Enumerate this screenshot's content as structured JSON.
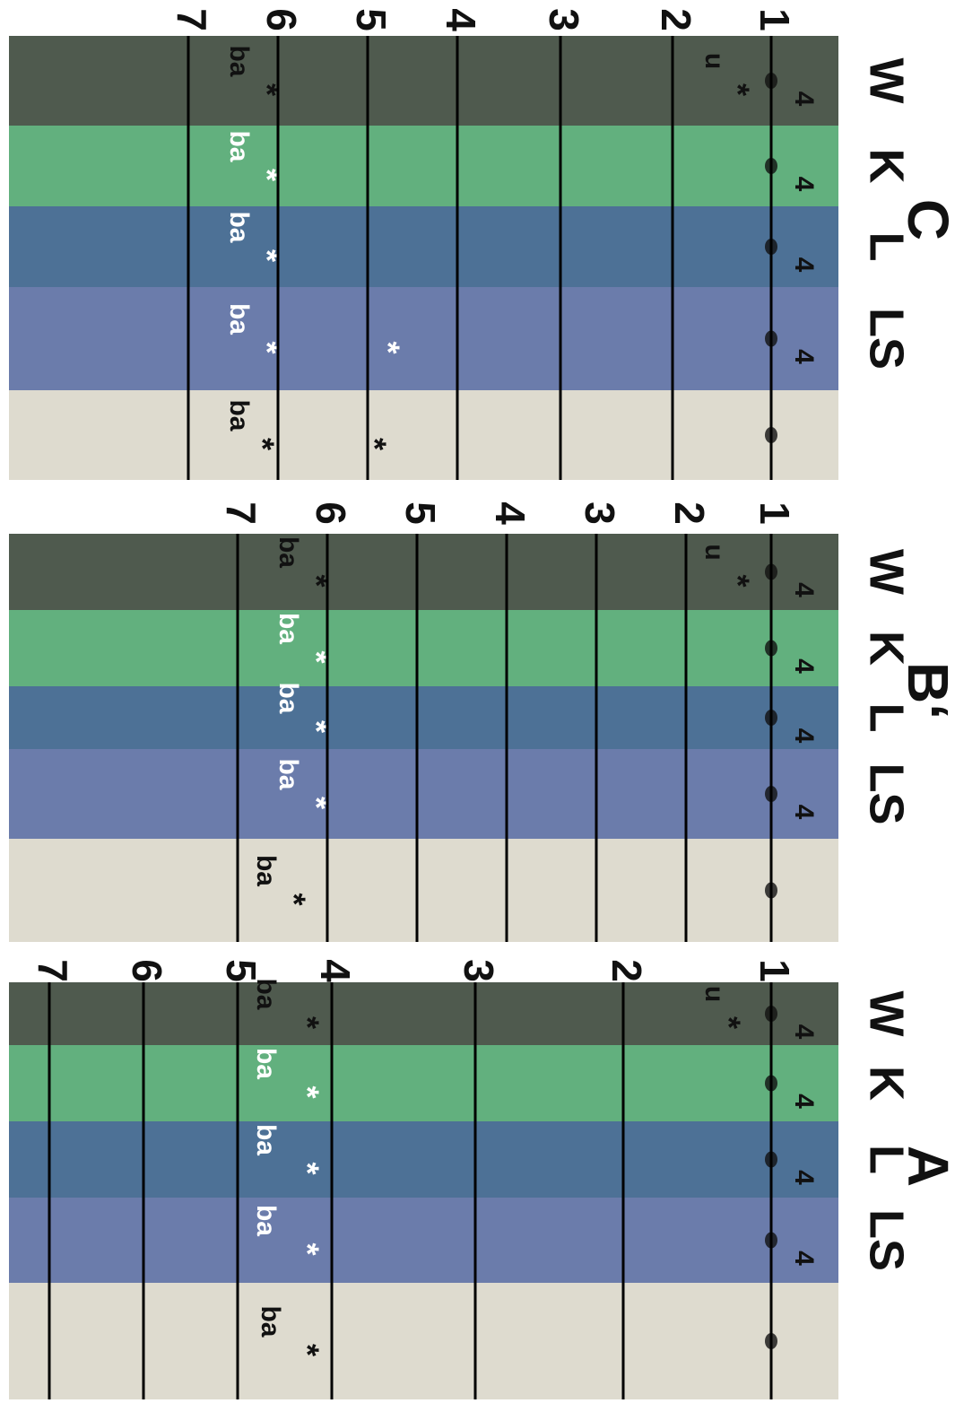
{
  "panels": [
    {
      "label": "C",
      "fronts": [
        "1",
        "2",
        "3",
        "4",
        "5",
        "6",
        "7"
      ],
      "lanes": [
        {
          "name": "W",
          "texts": [
            "ba",
            "*",
            "u",
            "*",
            "4"
          ]
        },
        {
          "name": "K",
          "texts": [
            "ba",
            "*",
            "4"
          ]
        },
        {
          "name": "L",
          "texts": [
            "ba",
            "*",
            "4"
          ]
        },
        {
          "name": "LS",
          "texts": [
            "ba",
            "*",
            "*",
            "4"
          ]
        },
        {
          "texts": [
            "ba",
            "*",
            "*"
          ]
        }
      ]
    },
    {
      "label": "B‘",
      "fronts": [
        "1",
        "2",
        "3",
        "4",
        "5",
        "6",
        "7"
      ],
      "lanes": [
        {
          "name": "W",
          "texts": [
            "ba",
            "*",
            "u",
            "*",
            "4"
          ]
        },
        {
          "name": "K",
          "texts": [
            "ba",
            "*",
            "4"
          ]
        },
        {
          "name": "L",
          "texts": [
            "ba",
            "*",
            "4"
          ]
        },
        {
          "name": "LS",
          "texts": [
            "ba",
            "*",
            "4"
          ]
        },
        {
          "texts": [
            "ba",
            "*"
          ]
        }
      ]
    },
    {
      "label": "A",
      "fronts": [
        "1",
        "2",
        "3",
        "4",
        "5",
        "6",
        "7"
      ],
      "lanes": [
        {
          "name": "W",
          "texts": [
            "ba",
            "*",
            "u",
            "*",
            "4"
          ]
        },
        {
          "name": "K",
          "texts": [
            "ba",
            "*",
            "4"
          ]
        },
        {
          "name": "L",
          "texts": [
            "ba",
            "*",
            "4"
          ]
        },
        {
          "name": "LS",
          "texts": [
            "ba",
            "*",
            "4"
          ]
        },
        {
          "texts": [
            "ba",
            "*"
          ]
        }
      ]
    }
  ]
}
